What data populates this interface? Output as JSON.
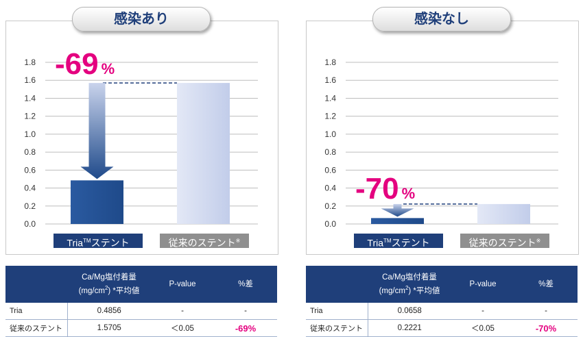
{
  "panels": [
    {
      "title": "感染あり",
      "pct_number": "-69",
      "pct_sign": "%",
      "labels": {
        "tria": "Tria",
        "tm": "TM",
        "tria_suffix": "ステント",
        "conventional": "従来のステント",
        "note_mark": "※"
      },
      "table": {
        "header": [
          "",
          "Ca/Mg塩付着量",
          "(mg/cm",
          "2",
          ") *平均値",
          "P-value",
          "%差"
        ],
        "rows": [
          {
            "name": "Tria",
            "value": "0.4856",
            "p": "-",
            "diff": "-"
          },
          {
            "name": "従来のステント",
            "value": "1.5705",
            "p": "＜0.05",
            "diff": "-69%"
          }
        ]
      }
    },
    {
      "title": "感染なし",
      "pct_number": "-70",
      "pct_sign": "%",
      "labels": {
        "tria": "Tria",
        "tm": "TM",
        "tria_suffix": "ステント",
        "conventional": "従来のステント",
        "note_mark": "※"
      },
      "table": {
        "header": [
          "",
          "Ca/Mg塩付着量",
          "(mg/cm",
          "2",
          ") *平均値",
          "P-value",
          "%差"
        ],
        "rows": [
          {
            "name": "Tria",
            "value": "0.0658",
            "p": "-",
            "diff": "-"
          },
          {
            "name": "従来のステント",
            "value": "0.2221",
            "p": "＜0.05",
            "diff": "-70%"
          }
        ]
      }
    }
  ],
  "chart_data": [
    {
      "type": "bar",
      "title": "感染あり",
      "categories": [
        "Tria™ステント",
        "従来のステント※"
      ],
      "values": [
        0.4856,
        1.5705
      ],
      "ylim": [
        0,
        1.8
      ],
      "yticks": [
        "0.0",
        "0.2",
        "0.4",
        "0.6",
        "0.8",
        "1.0",
        "1.2",
        "1.4",
        "1.6",
        "1.8"
      ],
      "annotation": "-69%",
      "grid": true,
      "colors": {
        "tria": "#1f4a8a",
        "conventional": "#c2cdea",
        "accent": "#e4007f"
      }
    },
    {
      "type": "bar",
      "title": "感染なし",
      "categories": [
        "Tria™ステント",
        "従来のステント※"
      ],
      "values": [
        0.0658,
        0.2221
      ],
      "ylim": [
        0,
        1.8
      ],
      "yticks": [
        "0.0",
        "0.2",
        "0.4",
        "0.6",
        "0.8",
        "1.0",
        "1.2",
        "1.4",
        "1.6",
        "1.8"
      ],
      "annotation": "-70%",
      "grid": true,
      "colors": {
        "tria": "#1f4a8a",
        "conventional": "#c2cdea",
        "accent": "#e4007f"
      }
    }
  ]
}
